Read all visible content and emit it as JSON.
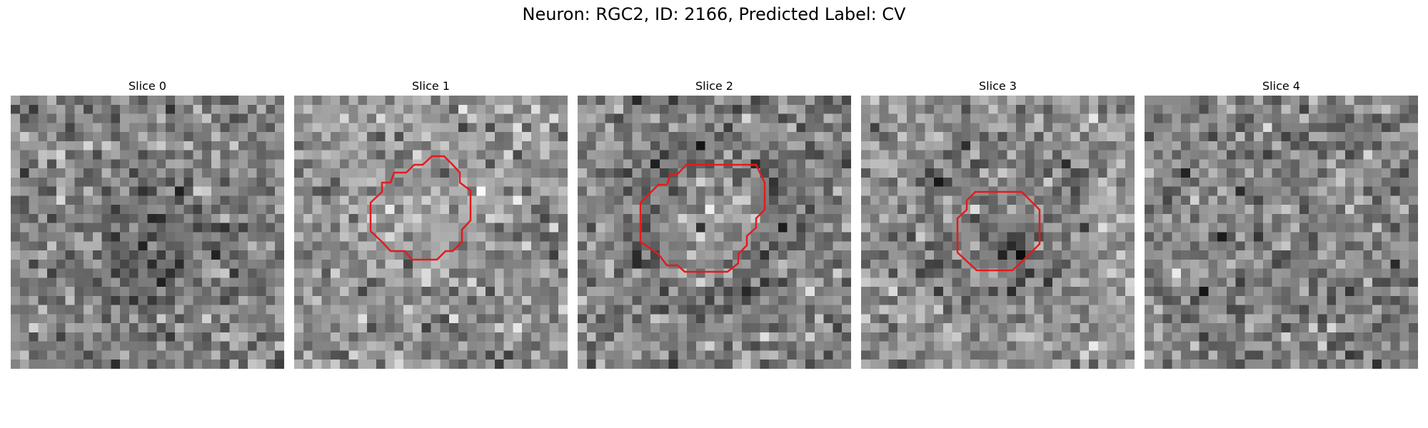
{
  "figure": {
    "title": "Neuron: RGC2, ID: 2166, Predicted Label: CV",
    "outline_color": "#e41a1c"
  },
  "slices": [
    {
      "label": "Slice 0",
      "has_roi": false,
      "texture": "mottled dark center"
    },
    {
      "label": "Slice 1",
      "has_roi": true,
      "texture": "bright blob in roi"
    },
    {
      "label": "Slice 2",
      "has_roi": true,
      "texture": "bright blob in roi"
    },
    {
      "label": "Slice 3",
      "has_roi": true,
      "texture": "dark blob in roi"
    },
    {
      "label": "Slice 4",
      "has_roi": false,
      "texture": "uniform noise"
    }
  ]
}
